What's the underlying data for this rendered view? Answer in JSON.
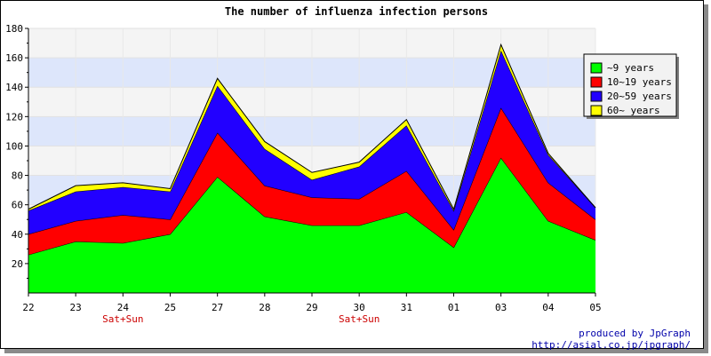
{
  "chart_data": {
    "type": "area",
    "stacked": true,
    "title": "The number of influenza infection persons",
    "xlabel": "",
    "ylabel": "",
    "categories": [
      "22",
      "23",
      "24",
      "25",
      "27",
      "28",
      "29",
      "30",
      "31",
      "01",
      "03",
      "04",
      "05"
    ],
    "category_notes": [
      {
        "category": "24",
        "text": "Sat+Sun"
      },
      {
        "category": "30",
        "text": "Sat+Sun"
      }
    ],
    "ylim": [
      0,
      180
    ],
    "yticks": [
      20,
      40,
      60,
      80,
      100,
      120,
      140,
      160,
      180
    ],
    "grid": true,
    "legend_position": "top-right",
    "series": [
      {
        "name": "~9 years",
        "color": "#00ff00",
        "values": [
          26,
          35,
          34,
          40,
          79,
          52,
          46,
          46,
          55,
          31,
          92,
          49,
          36
        ]
      },
      {
        "name": "10~19 years",
        "color": "#ff0000",
        "values": [
          14,
          14,
          19,
          10,
          30,
          21,
          19,
          18,
          28,
          12,
          34,
          26,
          14
        ]
      },
      {
        "name": "20~59 years",
        "color": "#2200ff",
        "values": [
          16,
          20,
          19,
          19,
          32,
          25,
          12,
          22,
          31,
          13,
          39,
          19,
          8
        ]
      },
      {
        "name": "60~ years",
        "color": "#ffff00",
        "values": [
          1,
          4,
          3,
          2,
          5,
          5,
          5,
          3,
          4,
          1,
          4,
          1,
          0
        ]
      }
    ]
  },
  "footer": {
    "credit_line1": "produced by JpGraph",
    "credit_line2": "http://asial.co.jp/jpgraph/"
  }
}
